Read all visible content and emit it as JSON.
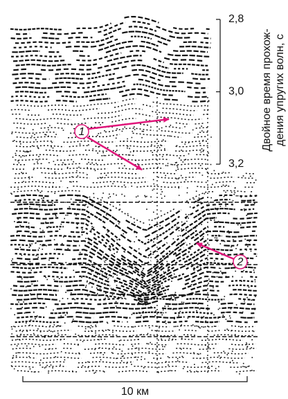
{
  "axis": {
    "title_lines": [
      "Двойное время прохож-",
      "дения упругих волн, с"
    ],
    "ticks": [
      {
        "value": 2.8,
        "label": "2,8"
      },
      {
        "value": 3.0,
        "label": "3,0"
      },
      {
        "value": 3.2,
        "label": "3,2"
      }
    ]
  },
  "callouts": [
    {
      "label": "1"
    },
    {
      "label": "2"
    }
  ],
  "scale_bar": {
    "label": "10 км"
  }
}
